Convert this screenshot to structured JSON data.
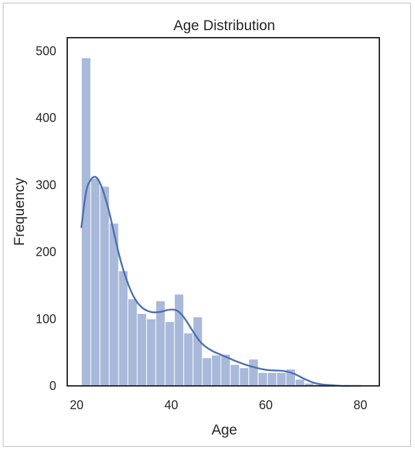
{
  "chart_data": {
    "type": "bar",
    "title": "Age Distribution",
    "xlabel": "Age",
    "ylabel": "Frequency",
    "xlim": [
      18,
      84
    ],
    "ylim": [
      0,
      520
    ],
    "xticks": [
      20,
      40,
      60,
      80
    ],
    "yticks": [
      0,
      100,
      200,
      300,
      400,
      500
    ],
    "grid": false,
    "bar_color": "#a9b9da",
    "line_color": "#4c72b0",
    "bins": [
      {
        "x0": 21.0,
        "x1": 22.97,
        "count": 490
      },
      {
        "x0": 22.97,
        "x1": 24.93,
        "count": 310
      },
      {
        "x0": 24.93,
        "x1": 26.9,
        "count": 298
      },
      {
        "x0": 26.9,
        "x1": 28.87,
        "count": 243
      },
      {
        "x0": 28.87,
        "x1": 30.83,
        "count": 172
      },
      {
        "x0": 30.83,
        "x1": 32.8,
        "count": 130
      },
      {
        "x0": 32.8,
        "x1": 34.77,
        "count": 108
      },
      {
        "x0": 34.77,
        "x1": 36.73,
        "count": 100
      },
      {
        "x0": 36.73,
        "x1": 38.7,
        "count": 127
      },
      {
        "x0": 38.7,
        "x1": 40.67,
        "count": 96
      },
      {
        "x0": 40.67,
        "x1": 42.63,
        "count": 137
      },
      {
        "x0": 42.63,
        "x1": 44.6,
        "count": 79
      },
      {
        "x0": 44.6,
        "x1": 46.57,
        "count": 103
      },
      {
        "x0": 46.57,
        "x1": 48.53,
        "count": 42
      },
      {
        "x0": 48.53,
        "x1": 50.5,
        "count": 46
      },
      {
        "x0": 50.5,
        "x1": 52.47,
        "count": 47
      },
      {
        "x0": 52.47,
        "x1": 54.43,
        "count": 32
      },
      {
        "x0": 54.43,
        "x1": 56.4,
        "count": 27
      },
      {
        "x0": 56.4,
        "x1": 58.37,
        "count": 40
      },
      {
        "x0": 58.37,
        "x1": 60.33,
        "count": 20
      },
      {
        "x0": 60.33,
        "x1": 62.3,
        "count": 20
      },
      {
        "x0": 62.3,
        "x1": 64.27,
        "count": 20
      },
      {
        "x0": 64.27,
        "x1": 66.23,
        "count": 25
      },
      {
        "x0": 66.23,
        "x1": 68.2,
        "count": 10
      },
      {
        "x0": 68.2,
        "x1": 70.17,
        "count": 4
      },
      {
        "x0": 70.17,
        "x1": 72.13,
        "count": 2
      },
      {
        "x0": 72.13,
        "x1": 74.1,
        "count": 0
      },
      {
        "x0": 74.1,
        "x1": 76.07,
        "count": 0
      },
      {
        "x0": 76.07,
        "x1": 78.03,
        "count": 0
      },
      {
        "x0": 78.03,
        "x1": 80.0,
        "count": 1
      }
    ],
    "kde": {
      "x": [
        21,
        22,
        23,
        24,
        25,
        26,
        27,
        28,
        29,
        30,
        31,
        32,
        33,
        34,
        35,
        36,
        37,
        38,
        39,
        40,
        41,
        42,
        43,
        44,
        45,
        46,
        47,
        48,
        49,
        50,
        52,
        54,
        56,
        58,
        60,
        62,
        64,
        66,
        68,
        70,
        72,
        74,
        76,
        78,
        80
      ],
      "y": [
        237,
        290,
        308,
        312,
        302,
        282,
        256,
        225,
        195,
        170,
        150,
        134,
        123,
        116,
        112,
        110,
        110,
        111,
        113,
        114,
        113,
        108,
        99,
        88,
        77,
        67,
        60,
        55,
        51,
        48,
        42,
        36,
        31,
        27,
        24,
        23,
        22,
        18,
        11,
        5,
        2,
        1,
        0,
        0,
        0
      ]
    }
  }
}
